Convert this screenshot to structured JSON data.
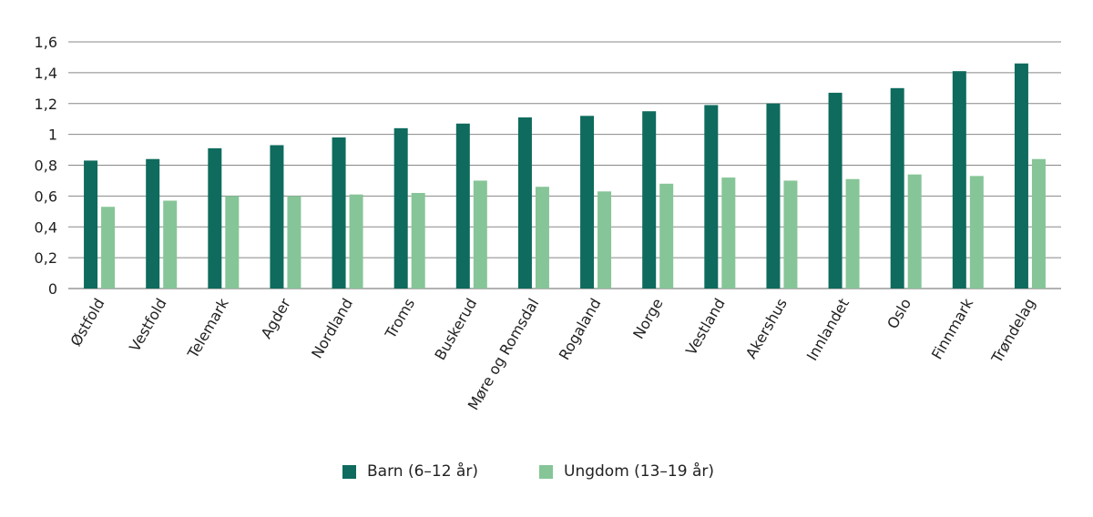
{
  "chart_data": {
    "type": "bar",
    "title": "",
    "xlabel": "",
    "ylabel": "",
    "ylim": [
      0,
      1.6
    ],
    "yticks": [
      "0",
      "0,2",
      "0,4",
      "0,6",
      "0,8",
      "1",
      "1,2",
      "1,4",
      "1,6"
    ],
    "grid": true,
    "legend_position": "bottom",
    "categories": [
      "Østfold",
      "Vestfold",
      "Telemark",
      "Agder",
      "Nordland",
      "Troms",
      "Buskerud",
      "Møre og Romsdal",
      "Rogaland",
      "Norge",
      "Vestland",
      "Akershus",
      "Innlandet",
      "Oslo",
      "Finnmark",
      "Trøndelag"
    ],
    "series": [
      {
        "name": "Barn (6–12 år)",
        "color": "#0e6b5e",
        "values": [
          0.83,
          0.84,
          0.91,
          0.93,
          0.98,
          1.04,
          1.07,
          1.11,
          1.12,
          1.15,
          1.19,
          1.2,
          1.27,
          1.3,
          1.41,
          1.46
        ]
      },
      {
        "name": "Ungdom (13–19 år)",
        "color": "#86c597",
        "values": [
          0.53,
          0.57,
          0.6,
          0.6,
          0.61,
          0.62,
          0.7,
          0.66,
          0.63,
          0.68,
          0.72,
          0.7,
          0.71,
          0.74,
          0.73,
          0.84
        ]
      }
    ]
  }
}
